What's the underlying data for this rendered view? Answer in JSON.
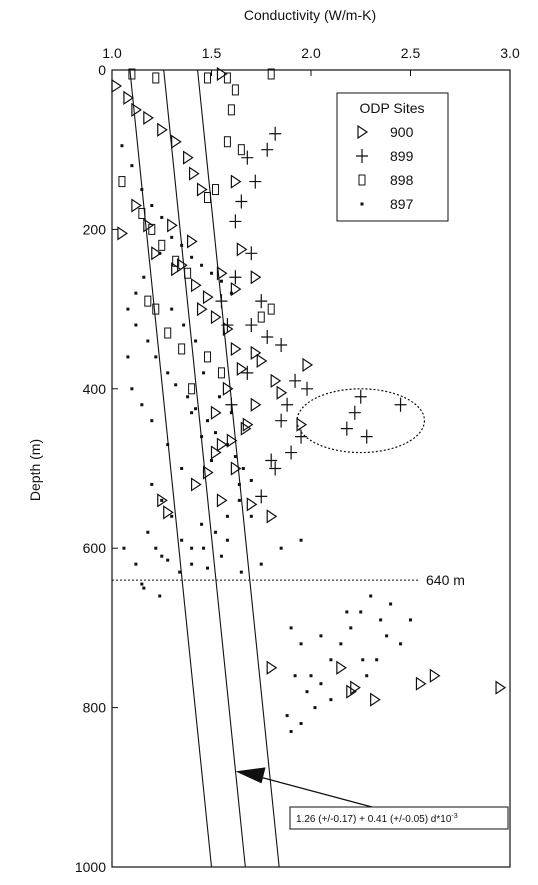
{
  "chart_data": {
    "type": "scatter",
    "title": "Conductivity (W/m-K)",
    "xlabel": "Conductivity (W/m-K)",
    "ylabel": "Depth (m)",
    "xlim": [
      1.0,
      3.0
    ],
    "ylim": [
      0,
      1000
    ],
    "y_inverted": true,
    "x_ticks": [
      1.0,
      1.5,
      2.0,
      2.5,
      3.0
    ],
    "x_tick_labels": [
      "1.0",
      "1.5",
      "2.0",
      "2.5",
      "3.0"
    ],
    "y_ticks": [
      0,
      200,
      400,
      600,
      800,
      1000
    ],
    "y_tick_labels": [
      "0",
      "200",
      "400",
      "600",
      "800",
      "1000"
    ],
    "legend": {
      "title": "ODP Sites",
      "placement": "top-right",
      "entries": [
        {
          "label": "900",
          "marker": "triangle-right"
        },
        {
          "label": "899",
          "marker": "plus"
        },
        {
          "label": "898",
          "marker": "open-square"
        },
        {
          "label": "897",
          "marker": "small-square"
        }
      ]
    },
    "reference_line": {
      "depth": 640,
      "label": "640 m",
      "style": "dotted"
    },
    "fit_lines": [
      {
        "name": "lower",
        "top": [
          1.09,
          0
        ],
        "bottom": [
          1.5,
          1000
        ]
      },
      {
        "name": "mean",
        "top": [
          1.26,
          0
        ],
        "bottom": [
          1.67,
          1000
        ]
      },
      {
        "name": "upper",
        "top": [
          1.43,
          0
        ],
        "bottom": [
          1.84,
          1000
        ]
      }
    ],
    "formula": "1.26 (+/-0.17) + 0.41 (+/-0.05) d*10",
    "formula_exponent": "-3",
    "circled_group": {
      "center": [
        2.25,
        440
      ],
      "radius": [
        0.32,
        40
      ],
      "style": "dotted"
    },
    "series": [
      {
        "name": "900",
        "marker": "triangle-right",
        "points": [
          [
            1.02,
            20
          ],
          [
            1.08,
            35
          ],
          [
            1.12,
            50
          ],
          [
            1.18,
            60
          ],
          [
            1.25,
            75
          ],
          [
            1.32,
            90
          ],
          [
            1.38,
            110
          ],
          [
            1.41,
            130
          ],
          [
            1.45,
            150
          ],
          [
            1.62,
            140
          ],
          [
            1.12,
            170
          ],
          [
            1.18,
            195
          ],
          [
            1.05,
            205
          ],
          [
            1.22,
            230
          ],
          [
            1.32,
            250
          ],
          [
            1.42,
            270
          ],
          [
            1.48,
            285
          ],
          [
            1.55,
            255
          ],
          [
            1.62,
            275
          ],
          [
            1.45,
            300
          ],
          [
            1.52,
            310
          ],
          [
            1.58,
            325
          ],
          [
            1.62,
            350
          ],
          [
            1.72,
            355
          ],
          [
            1.75,
            365
          ],
          [
            1.65,
            375
          ],
          [
            1.82,
            390
          ],
          [
            1.85,
            405
          ],
          [
            1.72,
            420
          ],
          [
            1.68,
            445
          ],
          [
            1.6,
            465
          ],
          [
            1.52,
            480
          ],
          [
            1.48,
            505
          ],
          [
            1.42,
            520
          ],
          [
            1.55,
            540
          ],
          [
            1.7,
            545
          ],
          [
            1.25,
            540
          ],
          [
            1.28,
            555
          ],
          [
            1.8,
            560
          ],
          [
            1.95,
            445
          ],
          [
            1.98,
            370
          ],
          [
            2.15,
            750
          ],
          [
            2.22,
            775
          ],
          [
            2.32,
            790
          ],
          [
            2.55,
            770
          ],
          [
            2.62,
            760
          ],
          [
            2.95,
            775
          ],
          [
            2.2,
            780
          ],
          [
            1.8,
            750
          ],
          [
            1.55,
            5
          ],
          [
            1.65,
            225
          ],
          [
            1.72,
            260
          ],
          [
            1.55,
            470
          ],
          [
            1.4,
            215
          ],
          [
            1.35,
            245
          ],
          [
            1.3,
            195
          ],
          [
            1.58,
            400
          ],
          [
            1.52,
            430
          ],
          [
            1.67,
            450
          ],
          [
            1.62,
            500
          ]
        ]
      },
      {
        "name": "899",
        "marker": "plus",
        "points": [
          [
            1.82,
            80
          ],
          [
            1.78,
            100
          ],
          [
            1.68,
            110
          ],
          [
            1.72,
            140
          ],
          [
            1.65,
            165
          ],
          [
            1.62,
            190
          ],
          [
            1.7,
            230
          ],
          [
            1.75,
            290
          ],
          [
            1.7,
            320
          ],
          [
            1.78,
            335
          ],
          [
            1.85,
            345
          ],
          [
            1.92,
            390
          ],
          [
            1.98,
            400
          ],
          [
            1.88,
            420
          ],
          [
            1.85,
            440
          ],
          [
            1.95,
            460
          ],
          [
            1.9,
            480
          ],
          [
            1.8,
            490
          ],
          [
            1.75,
            535
          ],
          [
            1.82,
            500
          ],
          [
            2.18,
            450
          ],
          [
            2.22,
            430
          ],
          [
            2.25,
            410
          ],
          [
            2.28,
            460
          ],
          [
            2.45,
            420
          ],
          [
            1.6,
            420
          ],
          [
            1.58,
            320
          ],
          [
            1.55,
            290
          ],
          [
            1.62,
            260
          ],
          [
            1.68,
            380
          ]
        ]
      },
      {
        "name": "898",
        "marker": "open-square",
        "points": [
          [
            1.1,
            5
          ],
          [
            1.22,
            10
          ],
          [
            1.48,
            10
          ],
          [
            1.58,
            10
          ],
          [
            1.8,
            5
          ],
          [
            1.62,
            25
          ],
          [
            1.6,
            50
          ],
          [
            1.58,
            90
          ],
          [
            1.65,
            100
          ],
          [
            1.05,
            140
          ],
          [
            1.15,
            180
          ],
          [
            1.2,
            200
          ],
          [
            1.25,
            220
          ],
          [
            1.32,
            240
          ],
          [
            1.38,
            255
          ],
          [
            1.18,
            290
          ],
          [
            1.22,
            300
          ],
          [
            1.28,
            330
          ],
          [
            1.35,
            350
          ],
          [
            1.48,
            360
          ],
          [
            1.55,
            380
          ],
          [
            1.4,
            400
          ],
          [
            1.75,
            310
          ],
          [
            1.8,
            300
          ],
          [
            1.48,
            160
          ],
          [
            1.52,
            150
          ]
        ]
      },
      {
        "name": "897",
        "marker": "small-square",
        "points": [
          [
            1.05,
            95
          ],
          [
            1.1,
            120
          ],
          [
            1.15,
            150
          ],
          [
            1.2,
            170
          ],
          [
            1.25,
            185
          ],
          [
            1.3,
            210
          ],
          [
            1.35,
            220
          ],
          [
            1.4,
            235
          ],
          [
            1.45,
            245
          ],
          [
            1.5,
            255
          ],
          [
            1.55,
            265
          ],
          [
            1.6,
            280
          ],
          [
            1.08,
            300
          ],
          [
            1.12,
            320
          ],
          [
            1.18,
            340
          ],
          [
            1.22,
            360
          ],
          [
            1.28,
            380
          ],
          [
            1.32,
            395
          ],
          [
            1.38,
            410
          ],
          [
            1.42,
            425
          ],
          [
            1.48,
            440
          ],
          [
            1.52,
            455
          ],
          [
            1.58,
            470
          ],
          [
            1.62,
            485
          ],
          [
            1.66,
            500
          ],
          [
            1.7,
            515
          ],
          [
            1.2,
            520
          ],
          [
            1.25,
            540
          ],
          [
            1.3,
            560
          ],
          [
            1.18,
            580
          ],
          [
            1.22,
            600
          ],
          [
            1.28,
            615
          ],
          [
            1.34,
            630
          ],
          [
            1.4,
            620
          ],
          [
            1.46,
            600
          ],
          [
            1.52,
            580
          ],
          [
            1.58,
            560
          ],
          [
            1.64,
            540
          ],
          [
            1.06,
            600
          ],
          [
            1.12,
            620
          ],
          [
            1.16,
            650
          ],
          [
            1.24,
            660
          ],
          [
            1.35,
            590
          ],
          [
            1.45,
            570
          ],
          [
            1.55,
            610
          ],
          [
            1.65,
            630
          ],
          [
            1.75,
            620
          ],
          [
            1.85,
            600
          ],
          [
            1.95,
            590
          ],
          [
            1.15,
            645
          ],
          [
            1.9,
            700
          ],
          [
            1.95,
            720
          ],
          [
            2.05,
            710
          ],
          [
            2.1,
            740
          ],
          [
            2.15,
            720
          ],
          [
            2.2,
            700
          ],
          [
            2.25,
            680
          ],
          [
            2.3,
            660
          ],
          [
            2.35,
            690
          ],
          [
            2.4,
            670
          ],
          [
            2.45,
            720
          ],
          [
            2.5,
            690
          ],
          [
            1.92,
            760
          ],
          [
            1.98,
            780
          ],
          [
            2.02,
            800
          ],
          [
            1.95,
            820
          ],
          [
            2.1,
            790
          ],
          [
            2.28,
            760
          ],
          [
            2.33,
            740
          ],
          [
            2.38,
            710
          ],
          [
            1.88,
            810
          ],
          [
            1.9,
            830
          ],
          [
            2.0,
            760
          ],
          [
            2.05,
            770
          ],
          [
            2.18,
            680
          ],
          [
            2.26,
            740
          ],
          [
            1.4,
            430
          ],
          [
            1.45,
            460
          ],
          [
            1.5,
            490
          ],
          [
            1.35,
            500
          ],
          [
            1.28,
            470
          ],
          [
            1.2,
            440
          ],
          [
            1.15,
            420
          ],
          [
            1.1,
            400
          ],
          [
            1.08,
            360
          ],
          [
            1.12,
            280
          ],
          [
            1.16,
            260
          ],
          [
            1.24,
            230
          ],
          [
            1.3,
            300
          ],
          [
            1.36,
            320
          ],
          [
            1.42,
            340
          ],
          [
            1.46,
            380
          ],
          [
            1.54,
            410
          ],
          [
            1.6,
            430
          ],
          [
            1.64,
            520
          ],
          [
            1.7,
            560
          ],
          [
            1.58,
            590
          ],
          [
            1.48,
            625
          ],
          [
            1.4,
            600
          ],
          [
            1.25,
            610
          ]
        ]
      }
    ]
  }
}
